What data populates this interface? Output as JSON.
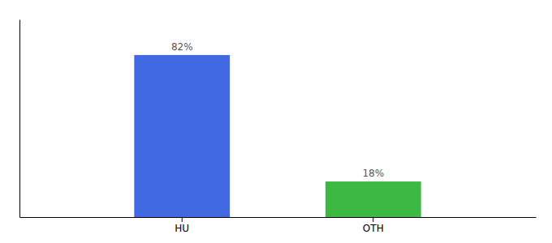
{
  "chart_data": {
    "type": "bar",
    "categories": [
      "HU",
      "OTH"
    ],
    "values": [
      82,
      18
    ],
    "value_labels": [
      "82%",
      "18%"
    ],
    "colors": [
      "#4169E1",
      "#3CB943"
    ],
    "ylim": [
      0,
      100
    ],
    "data_labels": true,
    "tick_labels": "x"
  }
}
